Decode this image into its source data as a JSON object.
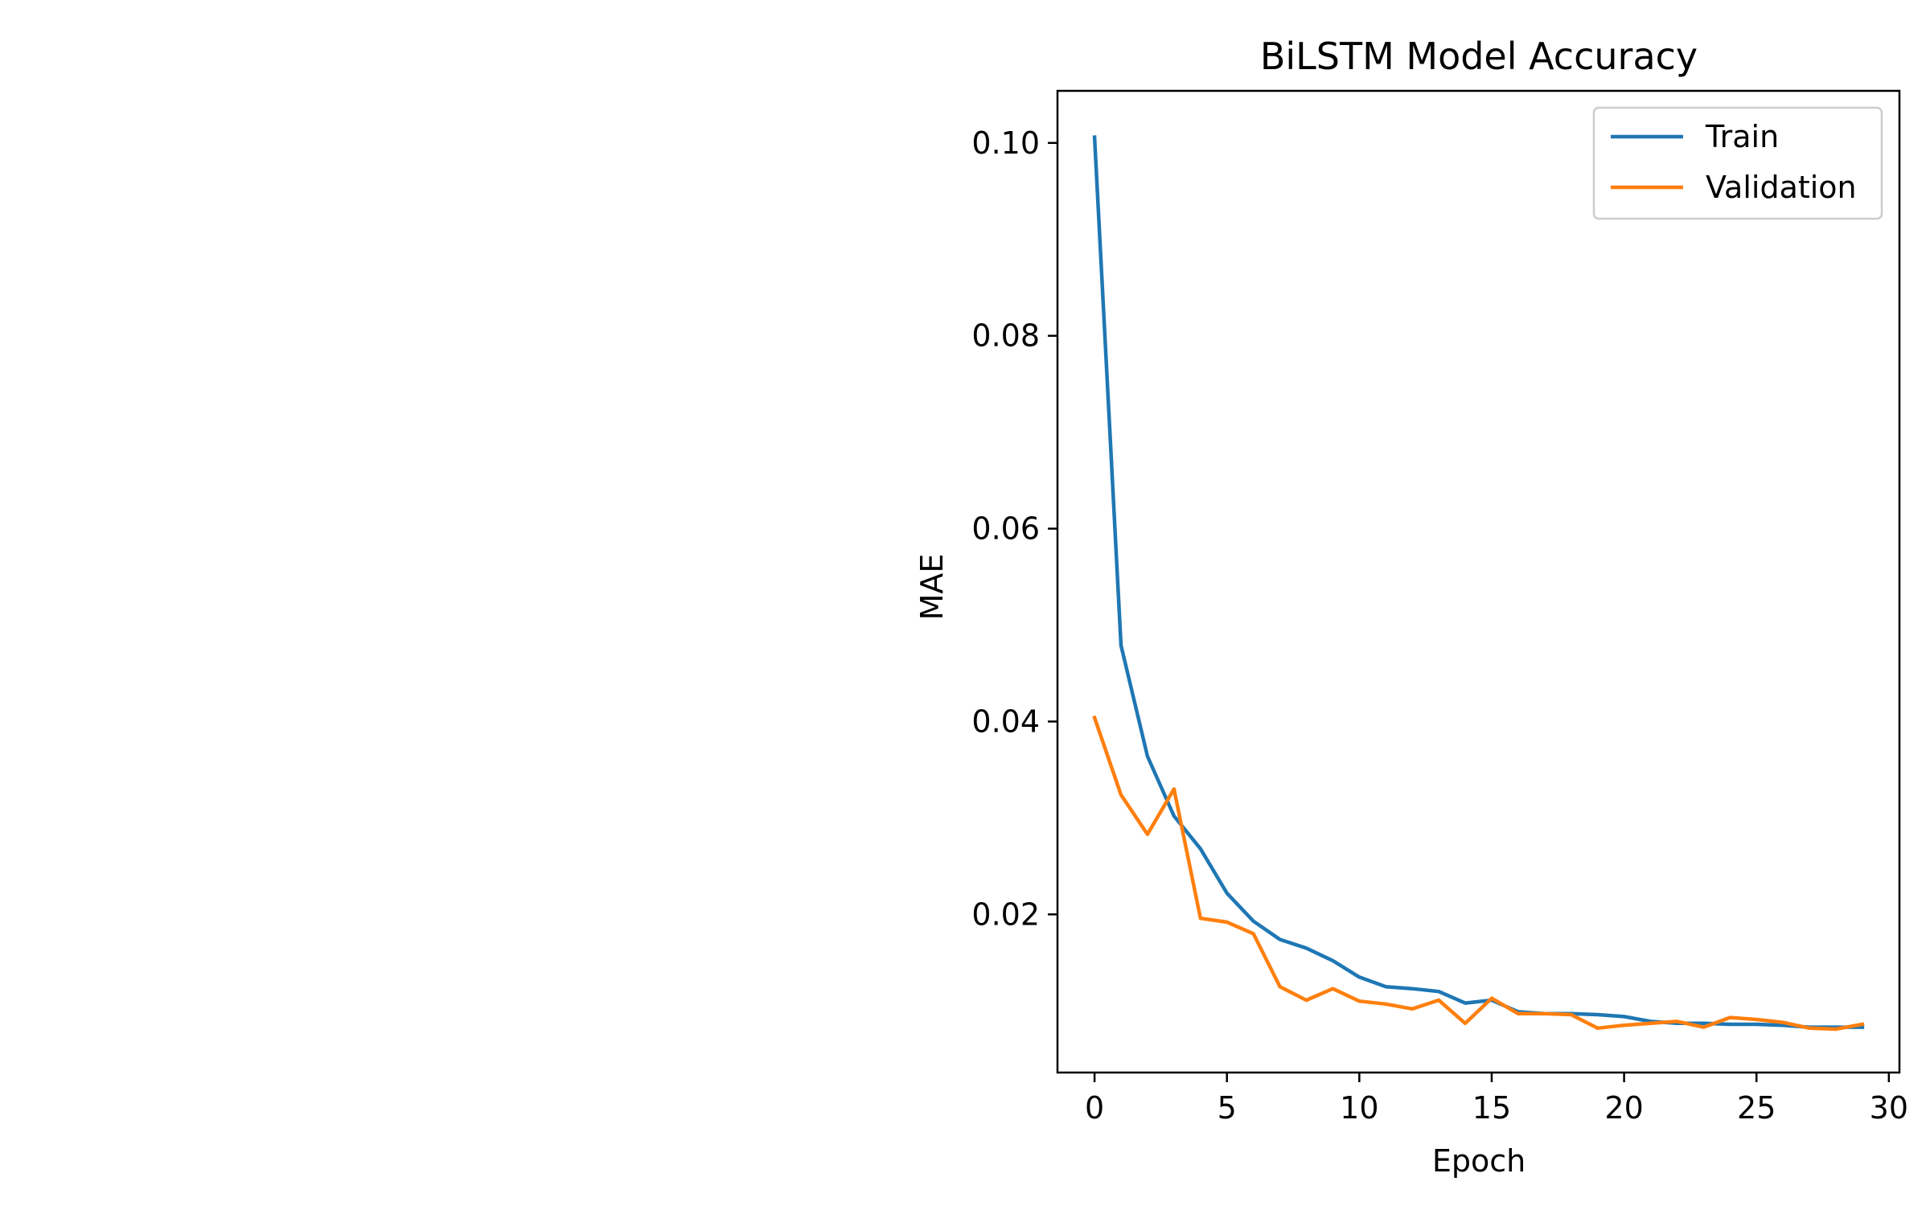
{
  "chart_data": {
    "type": "line",
    "title": "BiLSTM Model Accuracy",
    "xlabel": "Epoch",
    "ylabel": "MAE",
    "xlim": [
      -1.4,
      30.4
    ],
    "ylim": [
      0.0036,
      0.1054
    ],
    "x_ticks": [
      0,
      5,
      10,
      15,
      20,
      25,
      30
    ],
    "y_ticks": [
      0.02,
      0.04,
      0.06,
      0.08,
      0.1
    ],
    "y_tick_labels": [
      "0.02",
      "0.04",
      "0.06",
      "0.08",
      "0.10"
    ],
    "grid": false,
    "legend_position": "upper right",
    "x": [
      0,
      1,
      2,
      3,
      4,
      5,
      6,
      7,
      8,
      9,
      10,
      11,
      12,
      13,
      14,
      15,
      16,
      17,
      18,
      19,
      20,
      21,
      22,
      23,
      24,
      25,
      26,
      27,
      28,
      29
    ],
    "series": [
      {
        "name": "Train",
        "color": "#1f77b4",
        "values": [
          0.1006,
          0.0479,
          0.0364,
          0.0302,
          0.0268,
          0.0222,
          0.0193,
          0.0174,
          0.0165,
          0.0152,
          0.0135,
          0.0125,
          0.0123,
          0.012,
          0.0108,
          0.0111,
          0.0099,
          0.0097,
          0.0097,
          0.0096,
          0.0094,
          0.0089,
          0.0087,
          0.0087,
          0.0086,
          0.0086,
          0.0085,
          0.0083,
          0.0083,
          0.0083
        ]
      },
      {
        "name": "Validation",
        "color": "#ff7f0e",
        "values": [
          0.0404,
          0.0324,
          0.0283,
          0.033,
          0.0196,
          0.0192,
          0.018,
          0.0125,
          0.0111,
          0.0123,
          0.011,
          0.0107,
          0.0102,
          0.0111,
          0.0087,
          0.0113,
          0.0097,
          0.0097,
          0.0096,
          0.0082,
          0.0085,
          0.0087,
          0.0089,
          0.0083,
          0.0093,
          0.0091,
          0.0088,
          0.0082,
          0.0081,
          0.0086
        ]
      }
    ]
  }
}
